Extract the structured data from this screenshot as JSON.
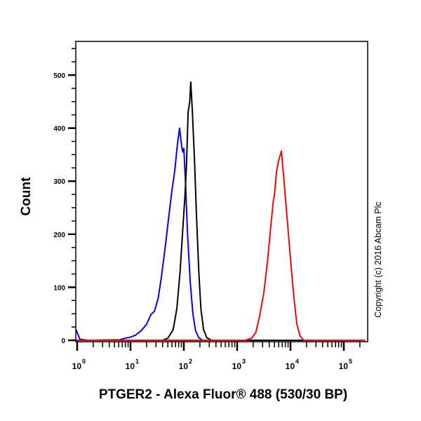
{
  "chart_data": {
    "type": "line",
    "title": "",
    "xlabel": "PTGER2 - Alexa Fluor® 488 (530/30 BP)",
    "ylabel": "Count",
    "annotation": "Copyright (c) 2016 Abcam Plc",
    "x_scale": "log",
    "xlim": [
      1,
      260000
    ],
    "ylim": [
      0,
      565
    ],
    "y_ticks": [
      0,
      100,
      200,
      300,
      400,
      500
    ],
    "x_ticks": [
      {
        "base": "10",
        "exp": "0",
        "value": 1
      },
      {
        "base": "10",
        "exp": "1",
        "value": 10
      },
      {
        "base": "10",
        "exp": "2",
        "value": 100
      },
      {
        "base": "10",
        "exp": "3",
        "value": 1000
      },
      {
        "base": "10",
        "exp": "4",
        "value": 10000
      },
      {
        "base": "10",
        "exp": "5",
        "value": 100000
      }
    ],
    "grid": false,
    "legend": null,
    "series": [
      {
        "name": "blue",
        "color": "#0000ff",
        "points_log10x_count": [
          [
            -0.03,
            20
          ],
          [
            0.05,
            2
          ],
          [
            0.2,
            0
          ],
          [
            0.8,
            1
          ],
          [
            0.9,
            4
          ],
          [
            1.0,
            6
          ],
          [
            1.1,
            10
          ],
          [
            1.2,
            18
          ],
          [
            1.3,
            30
          ],
          [
            1.38,
            48
          ],
          [
            1.45,
            55
          ],
          [
            1.52,
            80
          ],
          [
            1.58,
            120
          ],
          [
            1.65,
            175
          ],
          [
            1.72,
            235
          ],
          [
            1.78,
            285
          ],
          [
            1.83,
            320
          ],
          [
            1.88,
            370
          ],
          [
            1.92,
            400
          ],
          [
            1.96,
            365
          ],
          [
            1.98,
            355
          ],
          [
            2.0,
            362
          ],
          [
            2.03,
            300
          ],
          [
            2.07,
            200
          ],
          [
            2.12,
            110
          ],
          [
            2.17,
            50
          ],
          [
            2.22,
            18
          ],
          [
            2.28,
            5
          ],
          [
            2.35,
            0
          ],
          [
            5.4,
            0
          ]
        ]
      },
      {
        "name": "black",
        "color": "#000000",
        "points_log10x_count": [
          [
            -0.03,
            0
          ],
          [
            1.6,
            0
          ],
          [
            1.7,
            4
          ],
          [
            1.8,
            20
          ],
          [
            1.87,
            60
          ],
          [
            1.93,
            130
          ],
          [
            1.98,
            210
          ],
          [
            2.02,
            270
          ],
          [
            2.05,
            330
          ],
          [
            2.08,
            430
          ],
          [
            2.11,
            450
          ],
          [
            2.13,
            487
          ],
          [
            2.16,
            430
          ],
          [
            2.2,
            340
          ],
          [
            2.24,
            230
          ],
          [
            2.28,
            130
          ],
          [
            2.32,
            60
          ],
          [
            2.37,
            20
          ],
          [
            2.43,
            5
          ],
          [
            2.52,
            0
          ],
          [
            5.4,
            0
          ]
        ]
      },
      {
        "name": "red",
        "color": "#ff0000",
        "points_log10x_count": [
          [
            -0.03,
            0
          ],
          [
            3.15,
            0
          ],
          [
            3.27,
            4
          ],
          [
            3.35,
            15
          ],
          [
            3.42,
            45
          ],
          [
            3.5,
            90
          ],
          [
            3.57,
            150
          ],
          [
            3.63,
            215
          ],
          [
            3.68,
            265
          ],
          [
            3.7,
            275
          ],
          [
            3.74,
            320
          ],
          [
            3.78,
            340
          ],
          [
            3.83,
            357
          ],
          [
            3.87,
            310
          ],
          [
            3.92,
            250
          ],
          [
            3.97,
            190
          ],
          [
            4.02,
            130
          ],
          [
            4.07,
            75
          ],
          [
            4.12,
            30
          ],
          [
            4.18,
            8
          ],
          [
            4.25,
            0
          ],
          [
            5.4,
            0
          ]
        ]
      }
    ]
  },
  "labels": {
    "ylabel": "Count",
    "xlabel": "PTGER2 - Alexa Fluor® 488 (530/30 BP)",
    "copyright": "Copyright (c) 2016 Abcam Plc"
  }
}
